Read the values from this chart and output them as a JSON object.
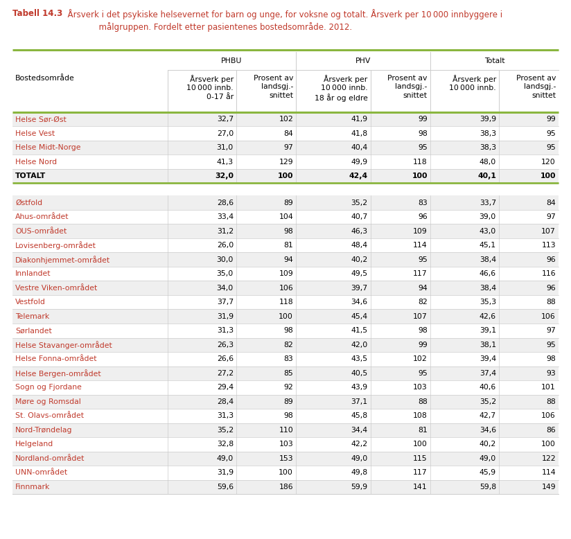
{
  "title_bold": "Tabell 14.3",
  "title_rest": "  Årsverk i det psykiske helsevernet for barn og unge, for voksne og totalt. Årsverk per 10 000 innbyggere i\n              målgruppen. Fordelt etter pasientenes bostedsområde. 2012.",
  "col_group_headers": [
    "PHBU",
    "PHV",
    "Totalt"
  ],
  "col_headers": [
    "Bostedsområde",
    "Årsverk per\n10 000 innb.\n0-17 år",
    "Prosent av\nlandsgj.-\nsnittet",
    "Årsverk per\n10 000 innb.\n18 år og eldre",
    "Prosent av\nlandsgj.-\nsnittet",
    "Årsverk per\n10 000 innb.",
    "Prosent av\nlandsgj.-\nsnittet"
  ],
  "rows": [
    [
      "Helse Sør-Øst",
      "32,7",
      "102",
      "41,9",
      "99",
      "39,9",
      "99"
    ],
    [
      "Helse Vest",
      "27,0",
      "84",
      "41,8",
      "98",
      "38,3",
      "95"
    ],
    [
      "Helse Midt-Norge",
      "31,0",
      "97",
      "40,4",
      "95",
      "38,3",
      "95"
    ],
    [
      "Helse Nord",
      "41,3",
      "129",
      "49,9",
      "118",
      "48,0",
      "120"
    ],
    [
      "TOTALT",
      "32,0",
      "100",
      "42,4",
      "100",
      "40,1",
      "100"
    ],
    [
      "",
      "",
      "",
      "",
      "",
      "",
      ""
    ],
    [
      "Østfold",
      "28,6",
      "89",
      "35,2",
      "83",
      "33,7",
      "84"
    ],
    [
      "Ahus-området",
      "33,4",
      "104",
      "40,7",
      "96",
      "39,0",
      "97"
    ],
    [
      "OUS-området",
      "31,2",
      "98",
      "46,3",
      "109",
      "43,0",
      "107"
    ],
    [
      "Lovisenberg-området",
      "26,0",
      "81",
      "48,4",
      "114",
      "45,1",
      "113"
    ],
    [
      "Diakonhjemmet-området",
      "30,0",
      "94",
      "40,2",
      "95",
      "38,4",
      "96"
    ],
    [
      "Innlandet",
      "35,0",
      "109",
      "49,5",
      "117",
      "46,6",
      "116"
    ],
    [
      "Vestre Viken-området",
      "34,0",
      "106",
      "39,7",
      "94",
      "38,4",
      "96"
    ],
    [
      "Vestfold",
      "37,7",
      "118",
      "34,6",
      "82",
      "35,3",
      "88"
    ],
    [
      "Telemark",
      "31,9",
      "100",
      "45,4",
      "107",
      "42,6",
      "106"
    ],
    [
      "Sørlandet",
      "31,3",
      "98",
      "41,5",
      "98",
      "39,1",
      "97"
    ],
    [
      "Helse Stavanger-området",
      "26,3",
      "82",
      "42,0",
      "99",
      "38,1",
      "95"
    ],
    [
      "Helse Fonna-området",
      "26,6",
      "83",
      "43,5",
      "102",
      "39,4",
      "98"
    ],
    [
      "Helse Bergen-området",
      "27,2",
      "85",
      "40,5",
      "95",
      "37,4",
      "93"
    ],
    [
      "Sogn og Fjordane",
      "29,4",
      "92",
      "43,9",
      "103",
      "40,6",
      "101"
    ],
    [
      "Møre og Romsdal",
      "28,4",
      "89",
      "37,1",
      "88",
      "35,2",
      "88"
    ],
    [
      "St. Olavs-området",
      "31,3",
      "98",
      "45,8",
      "108",
      "42,7",
      "106"
    ],
    [
      "Nord-Trøndelag",
      "35,2",
      "110",
      "34,4",
      "81",
      "34,6",
      "86"
    ],
    [
      "Helgeland",
      "32,8",
      "103",
      "42,2",
      "100",
      "40,2",
      "100"
    ],
    [
      "Nordland-området",
      "49,0",
      "153",
      "49,0",
      "115",
      "49,0",
      "122"
    ],
    [
      "UNN-området",
      "31,9",
      "100",
      "49,8",
      "117",
      "45,9",
      "114"
    ],
    [
      "Finnmark",
      "59,6",
      "186",
      "59,9",
      "141",
      "59,8",
      "149"
    ]
  ],
  "bold_rows": [
    4
  ],
  "separator_after_rows": [
    4
  ],
  "empty_rows": [
    5
  ],
  "row_label_color": "#c0392b",
  "totalt_label_color": "#000000",
  "green_line_color": "#8ab63f",
  "divider_color": "#cccccc",
  "bg_shaded": "#efefef",
  "bg_white": "#ffffff",
  "title_color": "#c0392b",
  "title_fontsize": 8.5,
  "header_fontsize": 7.8,
  "cell_fontsize": 7.8
}
